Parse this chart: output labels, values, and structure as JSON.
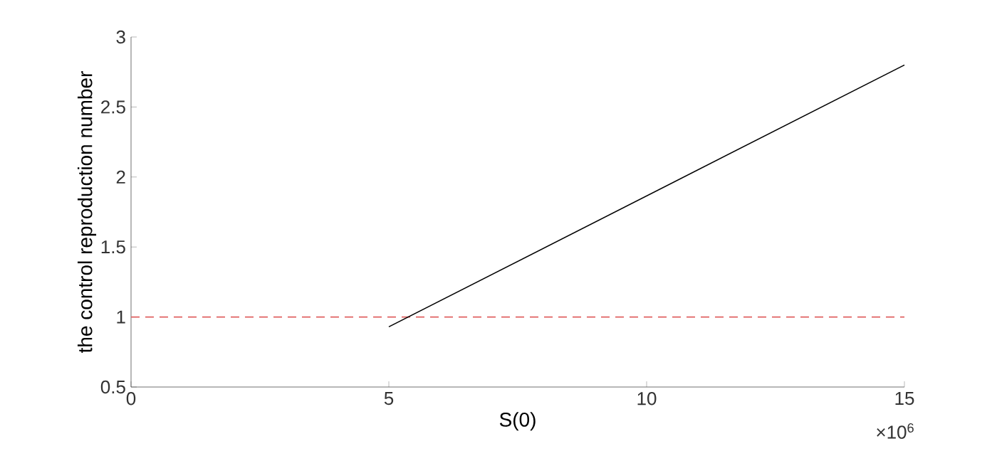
{
  "chart_data": {
    "type": "line",
    "xlabel": "S(0)",
    "ylabel": "the control reproduction number",
    "x": [
      5,
      15
    ],
    "series": [
      {
        "color": "#000000",
        "values": [
          0.93,
          2.8
        ]
      }
    ],
    "xlim": [
      0,
      15
    ],
    "ylim": [
      0.5,
      3
    ],
    "xticks": [
      0,
      5,
      10,
      15
    ],
    "yticks": [
      0.5,
      1,
      1.5,
      2,
      2.5,
      3
    ],
    "ref_lines": [
      {
        "axis": "y",
        "value": 1,
        "color": "#e06060",
        "line_style": "dashed"
      }
    ],
    "annotations": [
      "×10$^{6}$"
    ],
    "marker": "none",
    "line_style": "solid"
  }
}
